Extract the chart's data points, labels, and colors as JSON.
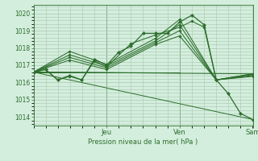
{
  "bg_color": "#d4eedd",
  "grid_color": "#a8c8b0",
  "line_color": "#2d6e2d",
  "marker_color": "#2d6e2d",
  "xlabel": "Pression niveau de la mer( hPa )",
  "ylim": [
    1013.5,
    1020.5
  ],
  "yticks": [
    1014,
    1015,
    1016,
    1017,
    1018,
    1019,
    1020
  ],
  "xlim": [
    0,
    1.0
  ],
  "day_positions": [
    0.333,
    0.666,
    1.0
  ],
  "day_labels": [
    "Jeu",
    "Ven",
    "Sam"
  ],
  "lines_no_marker": [
    {
      "x": [
        0,
        1.0
      ],
      "y": [
        1016.6,
        1013.85
      ]
    },
    {
      "x": [
        0,
        1.0
      ],
      "y": [
        1016.6,
        1016.5
      ]
    },
    {
      "x": [
        0,
        0.666
      ],
      "y": [
        1016.6,
        1016.55
      ]
    },
    {
      "x": [
        0,
        0.666
      ],
      "y": [
        1016.6,
        1016.6
      ]
    }
  ],
  "lines_with_markers": [
    {
      "x": [
        0,
        0.055,
        0.11,
        0.165,
        0.22,
        0.278,
        0.333,
        0.388,
        0.444,
        0.5,
        0.555,
        0.611,
        0.666,
        0.722,
        0.778,
        0.833,
        0.888,
        0.944,
        1.0
      ],
      "y": [
        1016.6,
        1016.75,
        1016.15,
        1016.4,
        1016.15,
        1017.35,
        1017.0,
        1017.75,
        1018.1,
        1018.85,
        1018.85,
        1018.85,
        1019.5,
        1019.9,
        1019.35,
        1016.15,
        1015.35,
        1014.2,
        1013.85
      ]
    },
    {
      "x": [
        0,
        0.055,
        0.11,
        0.165,
        0.22,
        0.278,
        0.333,
        0.444,
        0.555,
        0.666,
        0.722,
        0.778,
        0.833,
        1.0
      ],
      "y": [
        1016.6,
        1016.75,
        1016.15,
        1016.35,
        1016.15,
        1017.25,
        1016.9,
        1018.25,
        1018.75,
        1019.2,
        1019.55,
        1019.2,
        1016.15,
        1016.5
      ]
    },
    {
      "x": [
        0,
        0.165,
        0.333,
        0.555,
        0.666,
        0.833,
        1.0
      ],
      "y": [
        1016.6,
        1017.8,
        1017.05,
        1018.55,
        1019.65,
        1016.15,
        1016.5
      ]
    },
    {
      "x": [
        0,
        0.165,
        0.333,
        0.555,
        0.666,
        0.833,
        1.0
      ],
      "y": [
        1016.6,
        1017.6,
        1016.95,
        1018.4,
        1019.35,
        1016.15,
        1016.45
      ]
    },
    {
      "x": [
        0,
        0.165,
        0.333,
        0.555,
        0.666,
        0.833,
        1.0
      ],
      "y": [
        1016.6,
        1017.45,
        1016.85,
        1018.3,
        1019.0,
        1016.15,
        1016.4
      ]
    },
    {
      "x": [
        0,
        0.165,
        0.333,
        0.555,
        0.666,
        0.833,
        1.0
      ],
      "y": [
        1016.6,
        1017.3,
        1016.75,
        1018.2,
        1018.7,
        1016.15,
        1016.35
      ]
    }
  ]
}
